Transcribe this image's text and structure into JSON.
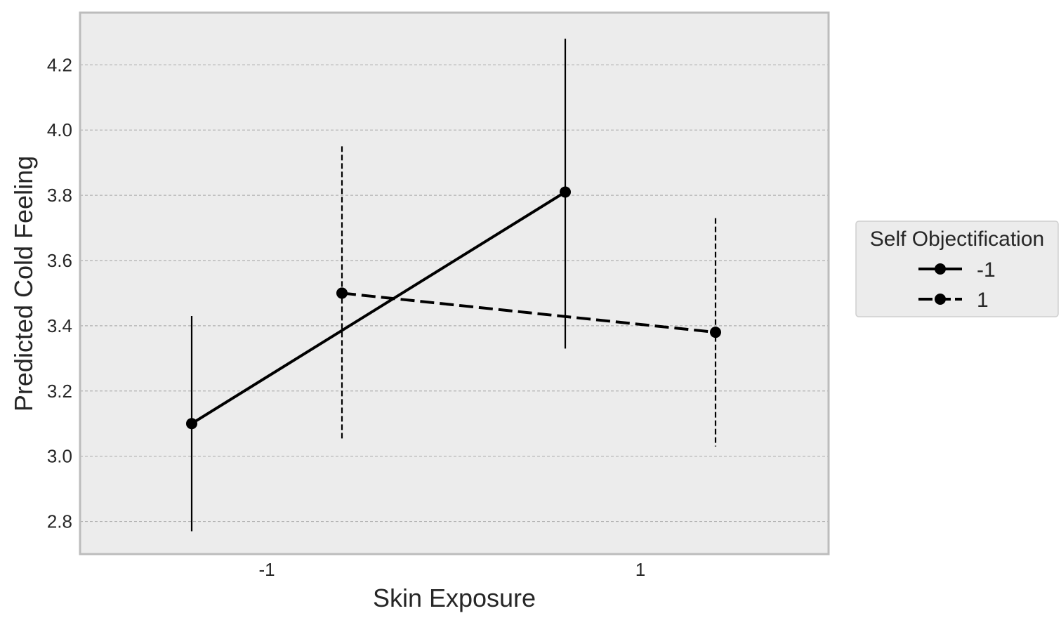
{
  "chart_data": {
    "type": "line",
    "title": "",
    "xlabel": "Skin Exposure",
    "ylabel": "Predicted Cold Feeling",
    "x_categories": [
      "-1",
      "1"
    ],
    "ylim": [
      2.7,
      4.36
    ],
    "yticks": [
      "2.8",
      "3.0",
      "3.2",
      "3.4",
      "3.6",
      "3.8",
      "4.0",
      "4.2"
    ],
    "grid": "horizontal dashed",
    "legend": {
      "title": "Self Objectification",
      "placement": "right-center"
    },
    "series": [
      {
        "name": "-1",
        "line_style": "solid",
        "points": [
          {
            "x": "-1",
            "y": 3.1,
            "ci_low": 2.77,
            "ci_high": 3.43
          },
          {
            "x": "1",
            "y": 3.81,
            "ci_low": 3.33,
            "ci_high": 4.28
          }
        ]
      },
      {
        "name": "1",
        "line_style": "dashed",
        "points": [
          {
            "x": "-1",
            "y": 3.5,
            "ci_low": 3.05,
            "ci_high": 3.95
          },
          {
            "x": "1",
            "y": 3.38,
            "ci_low": 3.03,
            "ci_high": 3.73
          }
        ]
      }
    ],
    "colors": {
      "plot_background": "#ececec",
      "frame": "#bcbcbc",
      "grid": "#b0b0b0",
      "series": "#000000",
      "text": "#262626"
    }
  }
}
